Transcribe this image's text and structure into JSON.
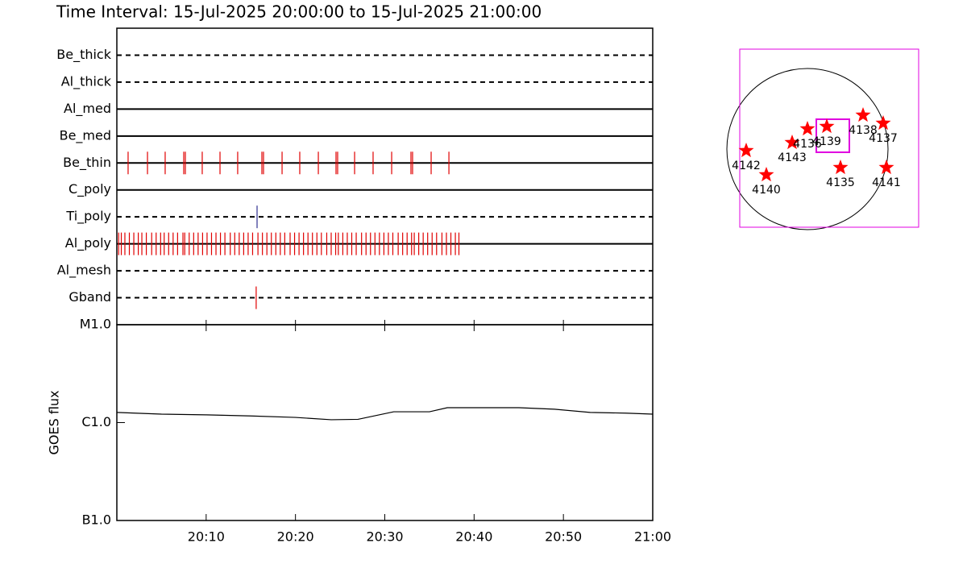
{
  "chart_data": [
    {
      "type": "timeline",
      "title": "Time Interval: 15-Jul-2025 20:00:00 to 15-Jul-2025 21:00:00",
      "xlim": [
        0,
        60
      ],
      "xticks": [
        {
          "value": 10,
          "label": "20:10"
        },
        {
          "value": 20,
          "label": "20:20"
        },
        {
          "value": 30,
          "label": "20:30"
        },
        {
          "value": 40,
          "label": "20:40"
        },
        {
          "value": 50,
          "label": "20:50"
        },
        {
          "value": 60,
          "label": "21:00"
        }
      ],
      "series": [
        {
          "name": "Be_thick",
          "line_style": "dashed",
          "color": "#e00000",
          "x": []
        },
        {
          "name": "Al_thick",
          "line_style": "dashed",
          "color": "#e00000",
          "x": []
        },
        {
          "name": "Al_med",
          "line_style": "solid",
          "color": "#e00000",
          "x": []
        },
        {
          "name": "Be_med",
          "line_style": "solid",
          "color": "#e00000",
          "x": []
        },
        {
          "name": "Be_thin",
          "line_style": "solid",
          "color": "#e00000",
          "x": [
            1.26,
            3.43,
            5.41,
            7.49,
            7.67,
            9.56,
            11.55,
            13.53,
            16.24,
            16.42,
            18.5,
            20.48,
            22.56,
            24.54,
            24.72,
            26.62,
            28.69,
            30.77,
            32.93,
            33.11,
            35.19,
            37.18
          ]
        },
        {
          "name": "C_poly",
          "line_style": "solid",
          "color": "#e00000",
          "x": []
        },
        {
          "name": "Ti_poly",
          "line_style": "dashed",
          "color": "#303090",
          "x": [
            15.7
          ]
        },
        {
          "name": "Al_poly",
          "line_style": "solid",
          "color": "#e00000",
          "x": [
            0.2,
            0.5,
            0.9,
            1.4,
            1.9,
            2.4,
            2.8,
            3.3,
            3.9,
            4.4,
            4.9,
            5.3,
            5.8,
            6.3,
            6.8,
            7.4,
            7.6,
            8.1,
            8.6,
            9.1,
            9.6,
            10.1,
            10.6,
            11.1,
            11.6,
            12.1,
            12.7,
            13.2,
            13.7,
            14.2,
            14.7,
            15.2,
            15.8,
            16.3,
            16.8,
            17.3,
            17.8,
            18.3,
            18.8,
            19.4,
            19.9,
            20.4,
            20.9,
            21.4,
            21.9,
            22.4,
            22.9,
            23.5,
            24.0,
            24.5,
            24.8,
            25.3,
            25.8,
            26.3,
            26.8,
            27.4,
            27.9,
            28.4,
            28.9,
            29.4,
            29.9,
            30.4,
            30.9,
            31.5,
            32.0,
            32.5,
            33.0,
            33.3,
            33.8,
            34.3,
            34.8,
            35.3,
            35.8,
            36.4,
            36.9,
            37.4,
            37.9,
            38.3
          ]
        },
        {
          "name": "Al_mesh",
          "line_style": "dashed",
          "color": "#e00000",
          "x": []
        },
        {
          "name": "Gband",
          "line_style": "dashed",
          "color": "#e00000",
          "x": [
            15.6
          ]
        }
      ]
    },
    {
      "type": "line",
      "ylabel": "GOES flux",
      "log_y": true,
      "color": "#000000",
      "xlim": [
        0,
        60
      ],
      "xticks": [
        {
          "value": 10,
          "label": "20:10"
        },
        {
          "value": 20,
          "label": "20:20"
        },
        {
          "value": 30,
          "label": "20:30"
        },
        {
          "value": 40,
          "label": "20:40"
        },
        {
          "value": 50,
          "label": "20:50"
        },
        {
          "value": 60,
          "label": "21:00"
        }
      ],
      "ylim": [
        1e-07,
        1e-05
      ],
      "yticks": [
        {
          "value": 1e-05,
          "label": "M1.0"
        },
        {
          "value": 1e-06,
          "label": "C1.0"
        },
        {
          "value": 1e-07,
          "label": "B1.0"
        }
      ],
      "x": [
        0,
        5,
        10,
        15,
        20,
        24,
        27,
        31,
        35,
        37,
        41,
        45,
        49,
        53,
        57,
        60
      ],
      "y": [
        1.27e-06,
        1.22e-06,
        1.2e-06,
        1.17e-06,
        1.13e-06,
        1.07e-06,
        1.08e-06,
        1.29e-06,
        1.29e-06,
        1.42e-06,
        1.42e-06,
        1.42e-06,
        1.37e-06,
        1.27e-06,
        1.25e-06,
        1.22e-06
      ]
    },
    {
      "type": "scatter",
      "disk_radius": 1,
      "color": "#ff0000",
      "box_color": "#e000e0",
      "labels": [
        "4142",
        "4140",
        "4143",
        "4136",
        "4139",
        "4138",
        "4137",
        "4135",
        "4141"
      ],
      "x": [
        -0.76,
        -0.51,
        -0.19,
        0.0,
        0.24,
        0.69,
        0.94,
        0.41,
        0.98
      ],
      "y": [
        -0.02,
        -0.32,
        0.08,
        0.25,
        0.28,
        0.42,
        0.32,
        -0.23,
        -0.23
      ],
      "boxes": [
        [
          -0.84,
          1.38,
          -0.97,
          1.24
        ],
        [
          0.11,
          0.52,
          -0.04,
          0.37
        ]
      ]
    }
  ]
}
